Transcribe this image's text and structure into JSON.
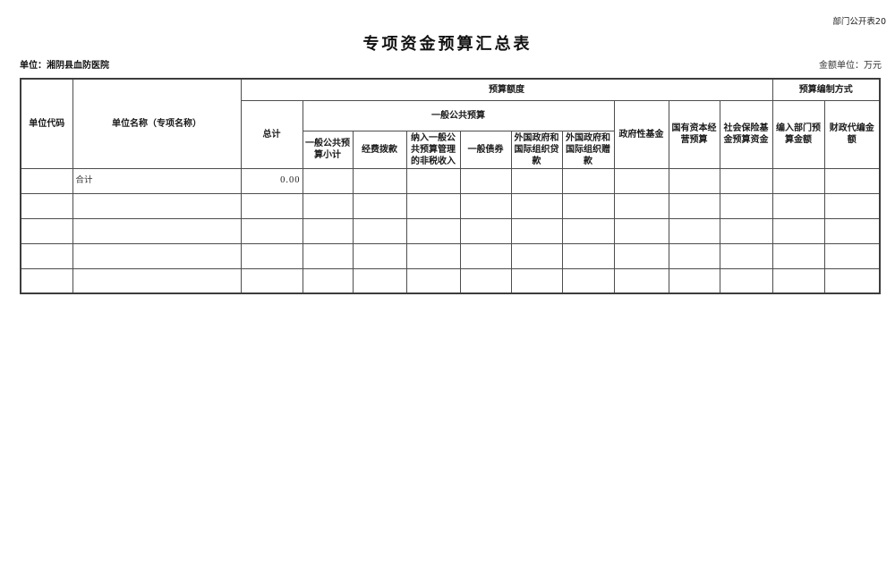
{
  "page": {
    "corner_label": "部门公开表20",
    "title": "专项资金预算汇总表",
    "unit_label": "单位：湘阴县血防医院",
    "amount_unit_label": "金额单位：万元"
  },
  "table": {
    "header": {
      "unit_code": "单位代码",
      "unit_name": "单位名称（专项名称）",
      "budget_quota": "预算额度",
      "budget_method": "预算编制方式",
      "total": "总计",
      "general_public_budget": "一般公共预算",
      "government_fund": "政府性基金",
      "state_capital": "国有资本经营预算",
      "social_insurance": "社会保险基金预算资金",
      "dept_budget_amount": "编入部门预算金额",
      "fiscal_agency_amount": "财政代编金额",
      "gpb_subtotal": "一般公共预算小计",
      "fund_appropriation": "经费拨款",
      "non_tax_revenue": "纳入一般公共预算管理的非税收入",
      "general_bond": "一般债券",
      "foreign_gov_loan": "外国政府和国际组织贷款",
      "foreign_gov_grant": "外国政府和国际组织赠款"
    },
    "rows": [
      [
        "",
        "合计",
        "0.00",
        "",
        "",
        "",
        "",
        "",
        "",
        "",
        "",
        "",
        "",
        ""
      ],
      [
        "",
        "",
        "",
        "",
        "",
        "",
        "",
        "",
        "",
        "",
        "",
        "",
        "",
        ""
      ],
      [
        "",
        "",
        "",
        "",
        "",
        "",
        "",
        "",
        "",
        "",
        "",
        "",
        "",
        ""
      ],
      [
        "",
        "",
        "",
        "",
        "",
        "",
        "",
        "",
        "",
        "",
        "",
        "",
        "",
        ""
      ],
      [
        "",
        "",
        "",
        "",
        "",
        "",
        "",
        "",
        "",
        "",
        "",
        "",
        "",
        ""
      ]
    ]
  }
}
